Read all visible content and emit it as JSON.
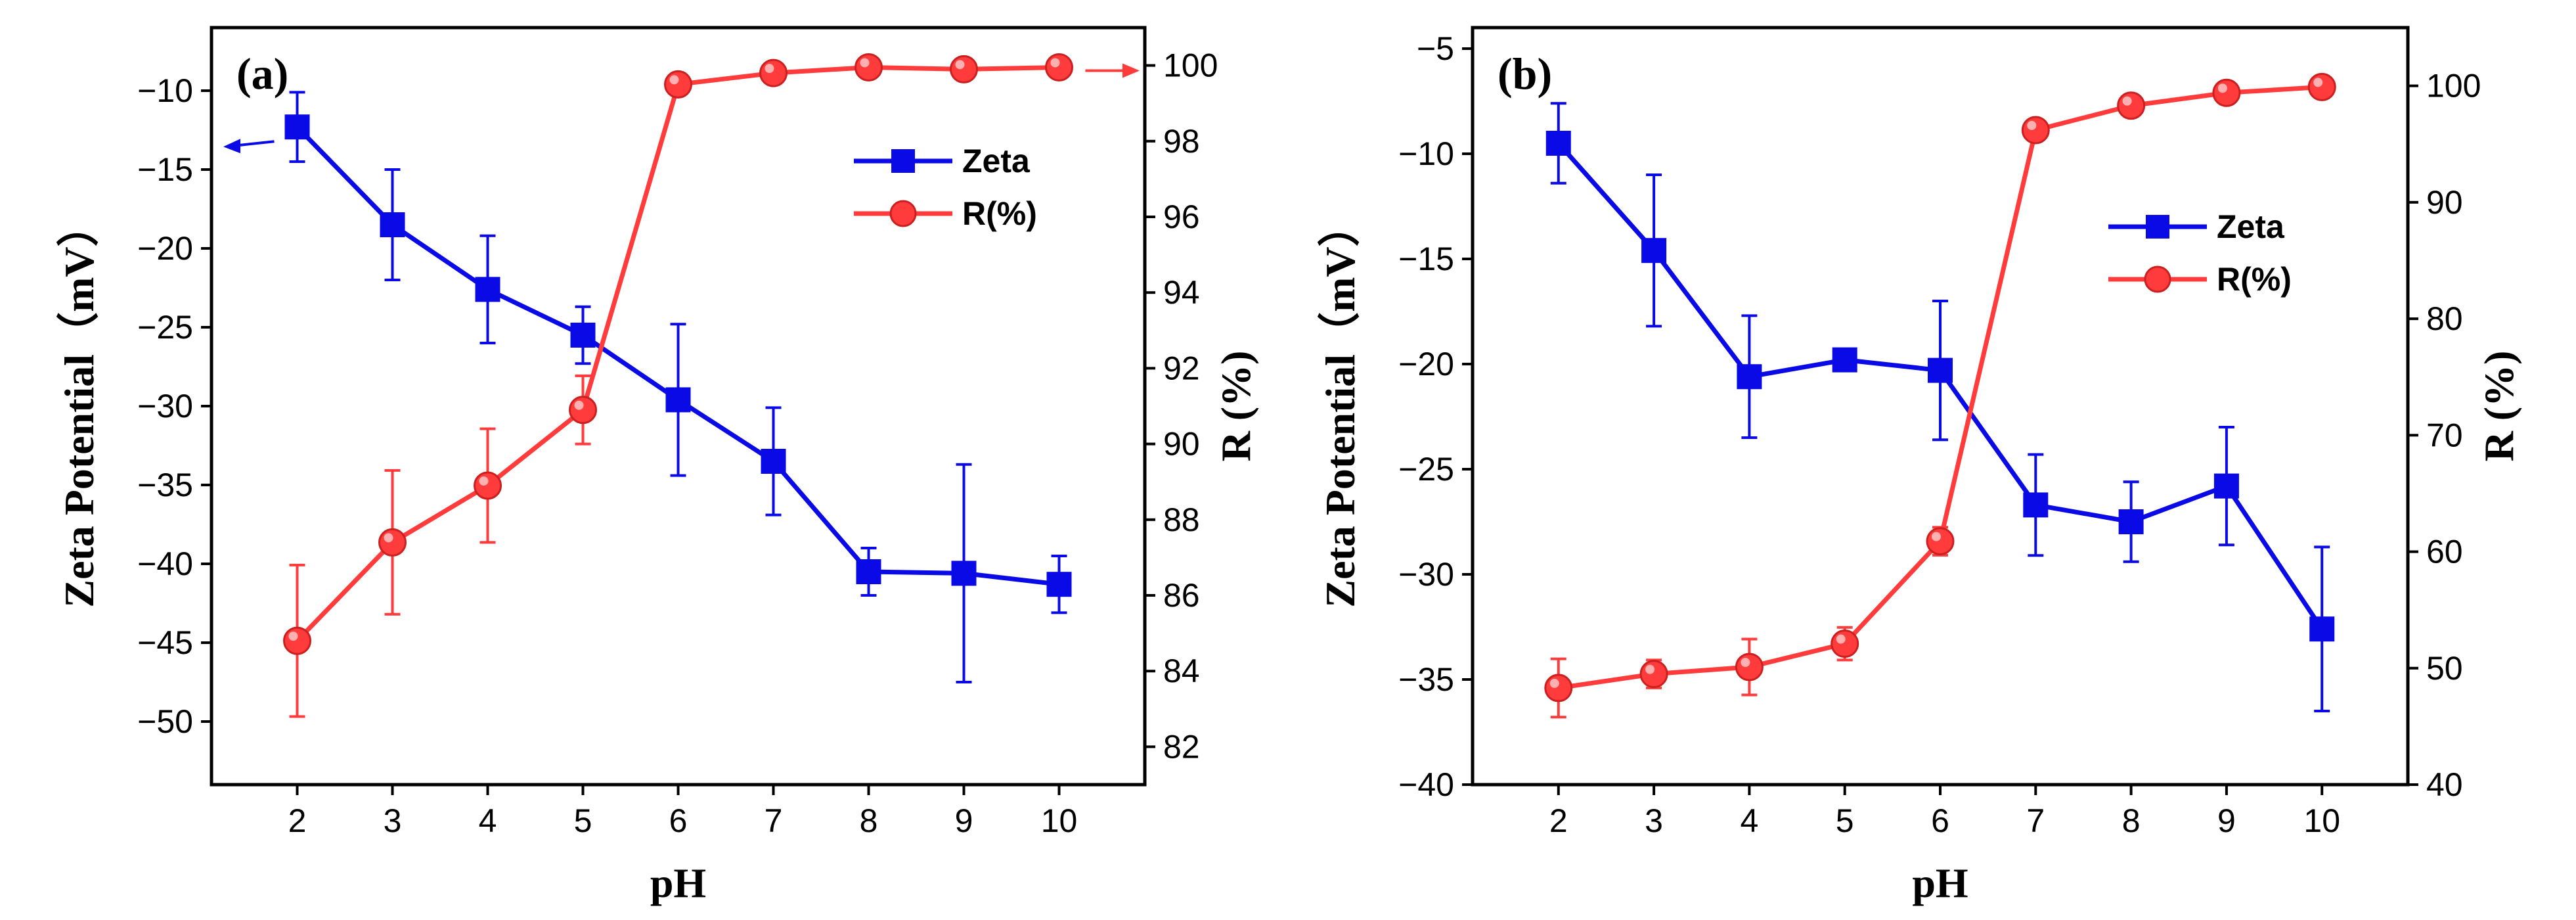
{
  "chart_data": [
    {
      "panel_label": "(a)",
      "type": "line",
      "xlabel": "pH",
      "ylabel_left": "Zeta Potential（mV）",
      "ylabel_right": "R (%)",
      "x": [
        2,
        3,
        4,
        5,
        6,
        7,
        8,
        9,
        10
      ],
      "x_ticks": [
        "2",
        "3",
        "4",
        "5",
        "6",
        "7",
        "8",
        "9",
        "10"
      ],
      "xlim": [
        1.1,
        10.9
      ],
      "ylim_left": [
        -54,
        -6
      ],
      "ylim_right": [
        81,
        101
      ],
      "left_ticks": [
        -50,
        -45,
        -40,
        -35,
        -30,
        -25,
        -20,
        -15,
        -10
      ],
      "left_tick_labels": [
        "−50",
        "−45",
        "−40",
        "−35",
        "−30",
        "−25",
        "−20",
        "−15",
        "−10"
      ],
      "right_ticks": [
        82,
        84,
        86,
        88,
        90,
        92,
        94,
        96,
        98,
        100
      ],
      "right_tick_labels": [
        "82",
        "84",
        "86",
        "88",
        "90",
        "92",
        "94",
        "96",
        "98",
        "100"
      ],
      "series": [
        {
          "name": "Zeta",
          "axis": "left",
          "color": "#0a0ae6",
          "marker": "square",
          "values": [
            -12.3,
            -18.5,
            -22.6,
            -25.5,
            -29.6,
            -33.5,
            -40.5,
            -40.6,
            -41.3
          ],
          "errors": [
            2.2,
            3.5,
            3.4,
            1.8,
            4.8,
            3.4,
            1.5,
            6.9,
            1.8
          ]
        },
        {
          "name": "R(%)",
          "axis": "right",
          "color": "#ff3b3b",
          "marker": "circle",
          "values": [
            84.8,
            87.4,
            88.9,
            90.9,
            99.5,
            99.8,
            99.95,
            99.9,
            99.95
          ],
          "errors": [
            2.0,
            1.9,
            1.5,
            0.9,
            0,
            0,
            0,
            0,
            0
          ]
        }
      ],
      "axis_arrows": {
        "left_series": "Zeta",
        "right_series": "R(%)"
      }
    },
    {
      "panel_label": "(b)",
      "type": "line",
      "xlabel": "pH",
      "ylabel_left": "Zeta Potential（mV）",
      "ylabel_right": "R (%)",
      "x": [
        2,
        3,
        4,
        5,
        6,
        7,
        8,
        9,
        10
      ],
      "x_ticks": [
        "2",
        "3",
        "4",
        "5",
        "6",
        "7",
        "8",
        "9",
        "10"
      ],
      "xlim": [
        1.1,
        10.9
      ],
      "ylim_left": [
        -40,
        -4
      ],
      "ylim_right": [
        40,
        105
      ],
      "left_ticks": [
        -40,
        -35,
        -30,
        -25,
        -20,
        -15,
        -10,
        -5
      ],
      "left_tick_labels": [
        "−40",
        "−35",
        "−30",
        "−25",
        "−20",
        "−15",
        "−10",
        "−5"
      ],
      "right_ticks": [
        40,
        50,
        60,
        70,
        80,
        90,
        100
      ],
      "right_tick_labels": [
        "40",
        "50",
        "60",
        "70",
        "80",
        "90",
        "100"
      ],
      "series": [
        {
          "name": "Zeta",
          "axis": "left",
          "color": "#0a0ae6",
          "marker": "square",
          "values": [
            -9.5,
            -14.6,
            -20.6,
            -19.8,
            -20.3,
            -26.7,
            -27.5,
            -25.8,
            -32.6
          ],
          "errors": [
            1.9,
            3.6,
            2.9,
            0.5,
            3.3,
            2.4,
            1.9,
            2.8,
            3.9
          ]
        },
        {
          "name": "R(%)",
          "axis": "right",
          "color": "#ff3b3b",
          "marker": "circle",
          "values": [
            48.3,
            49.5,
            50.1,
            52.1,
            60.9,
            96.2,
            98.3,
            99.4,
            99.9
          ],
          "errors": [
            2.5,
            1.2,
            2.4,
            1.4,
            1.2,
            0.8,
            0.5,
            0.3,
            0.2
          ]
        }
      ]
    }
  ]
}
